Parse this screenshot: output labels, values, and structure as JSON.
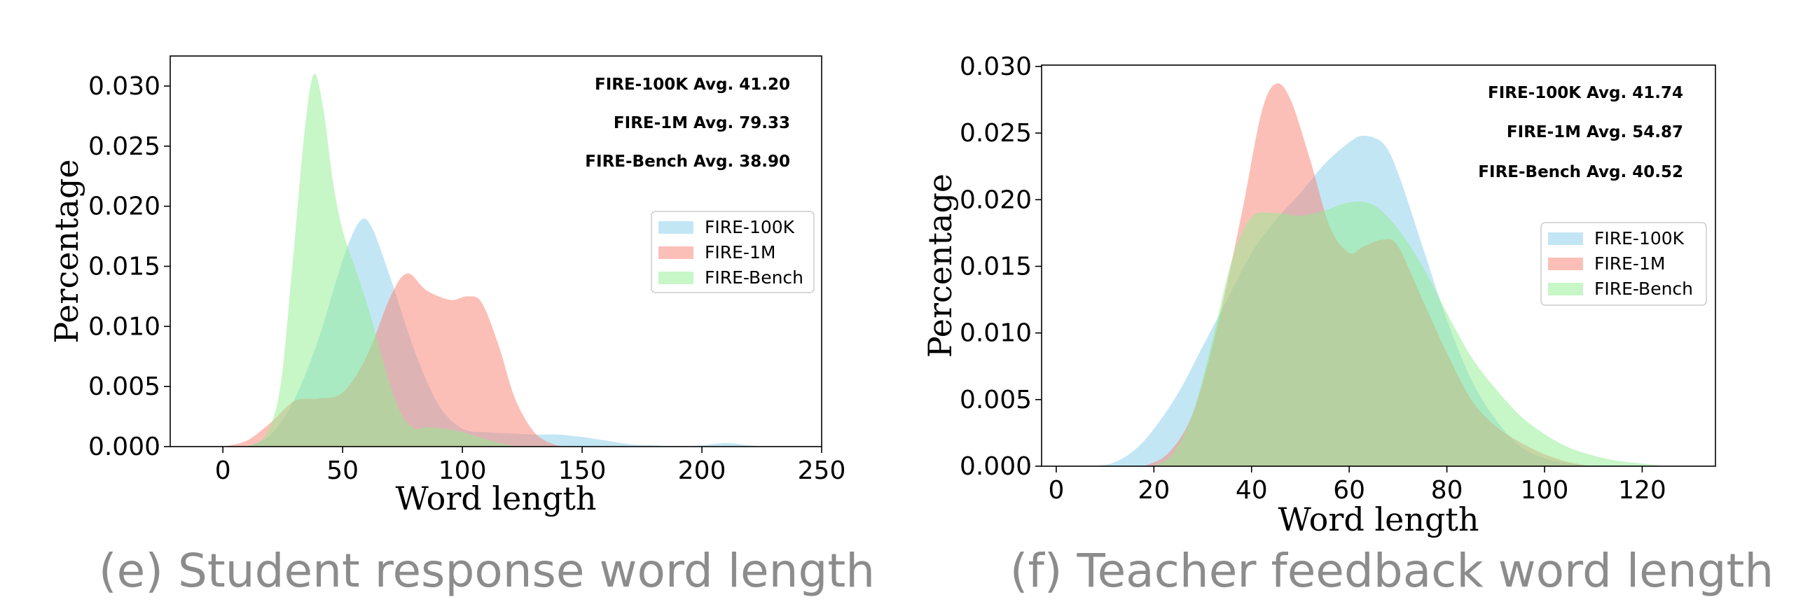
{
  "chart_data": [
    {
      "type": "area",
      "caption": "(e) Student response word length",
      "xlabel": "Word length",
      "ylabel": "Percentage",
      "xlim": [
        -22,
        250
      ],
      "ylim": [
        0,
        0.0325
      ],
      "xticks": [
        "0",
        "50",
        "100",
        "150",
        "200",
        "250"
      ],
      "xtick_values": [
        0,
        50,
        100,
        150,
        200,
        250
      ],
      "yticks": [
        "0.000",
        "0.005",
        "0.010",
        "0.015",
        "0.020",
        "0.025",
        "0.030"
      ],
      "ytick_values": [
        0,
        0.005,
        0.01,
        0.015,
        0.02,
        0.025,
        0.03
      ],
      "averages": [
        "FIRE-100K Avg. 41.20",
        "FIRE-1M Avg. 79.33",
        "FIRE-Bench Avg. 38.90"
      ],
      "legend": {
        "placement": "right",
        "entries": [
          "FIRE-100K",
          "FIRE-1M",
          "FIRE-Bench"
        ]
      },
      "series": [
        {
          "name": "FIRE-100K",
          "color": "#87ceeb",
          "points": [
            [
              10,
              0
            ],
            [
              20,
              0.001
            ],
            [
              30,
              0.004
            ],
            [
              40,
              0.009
            ],
            [
              50,
              0.0155
            ],
            [
              57,
              0.0187
            ],
            [
              62,
              0.0183
            ],
            [
              70,
              0.014
            ],
            [
              80,
              0.008
            ],
            [
              90,
              0.0035
            ],
            [
              100,
              0.0015
            ],
            [
              110,
              0.0012
            ],
            [
              120,
              0.0011
            ],
            [
              130,
              0.001
            ],
            [
              140,
              0.001
            ],
            [
              150,
              0.0008
            ],
            [
              160,
              0.0005
            ],
            [
              170,
              0.0002
            ],
            [
              180,
              0.0001
            ],
            [
              190,
              0
            ],
            [
              200,
              0.0001
            ],
            [
              210,
              0.0003
            ],
            [
              220,
              0.0001
            ],
            [
              225,
              0
            ]
          ]
        },
        {
          "name": "FIRE-1M",
          "color": "#fa8072",
          "points": [
            [
              0,
              0
            ],
            [
              10,
              0.0005
            ],
            [
              20,
              0.002
            ],
            [
              30,
              0.0038
            ],
            [
              40,
              0.004
            ],
            [
              50,
              0.0045
            ],
            [
              60,
              0.0075
            ],
            [
              70,
              0.0125
            ],
            [
              77,
              0.0144
            ],
            [
              85,
              0.013
            ],
            [
              95,
              0.0122
            ],
            [
              102,
              0.0125
            ],
            [
              108,
              0.012
            ],
            [
              115,
              0.0085
            ],
            [
              122,
              0.004
            ],
            [
              130,
              0.0012
            ],
            [
              138,
              0.0002
            ],
            [
              145,
              0
            ]
          ]
        },
        {
          "name": "FIRE-Bench",
          "color": "#90ee90",
          "points": [
            [
              10,
              0
            ],
            [
              18,
              0.001
            ],
            [
              24,
              0.005
            ],
            [
              29,
              0.015
            ],
            [
              34,
              0.026
            ],
            [
              38,
              0.031
            ],
            [
              42,
              0.028
            ],
            [
              46,
              0.022
            ],
            [
              50,
              0.018
            ],
            [
              55,
              0.015
            ],
            [
              60,
              0.012
            ],
            [
              65,
              0.0085
            ],
            [
              70,
              0.005
            ],
            [
              75,
              0.0025
            ],
            [
              80,
              0.0015
            ],
            [
              85,
              0.0016
            ],
            [
              92,
              0.0015
            ],
            [
              100,
              0.0012
            ],
            [
              110,
              0.0006
            ],
            [
              120,
              0.0001
            ],
            [
              125,
              0
            ]
          ]
        }
      ]
    },
    {
      "type": "area",
      "caption": "(f) Teacher feedback word length",
      "xlabel": "Word length",
      "ylabel": "Percentage",
      "xlim": [
        -3,
        135
      ],
      "ylim": [
        0,
        0.0301
      ],
      "xticks": [
        "0",
        "20",
        "40",
        "60",
        "80",
        "100",
        "120"
      ],
      "xtick_values": [
        0,
        20,
        40,
        60,
        80,
        100,
        120
      ],
      "yticks": [
        "0.000",
        "0.005",
        "0.010",
        "0.015",
        "0.020",
        "0.025",
        "0.030"
      ],
      "ytick_values": [
        0,
        0.005,
        0.01,
        0.015,
        0.02,
        0.025,
        0.03
      ],
      "averages": [
        "FIRE-100K Avg. 41.74",
        "FIRE-1M Avg. 54.87",
        "FIRE-Bench Avg. 40.52"
      ],
      "legend": {
        "placement": "right",
        "entries": [
          "FIRE-100K",
          "FIRE-1M",
          "FIRE-Bench"
        ]
      },
      "series": [
        {
          "name": "FIRE-100K",
          "color": "#87ceeb",
          "points": [
            [
              8,
              0
            ],
            [
              12,
              0.0003
            ],
            [
              16,
              0.0012
            ],
            [
              20,
              0.0028
            ],
            [
              25,
              0.0055
            ],
            [
              30,
              0.009
            ],
            [
              35,
              0.0125
            ],
            [
              40,
              0.016
            ],
            [
              45,
              0.0185
            ],
            [
              50,
              0.0205
            ],
            [
              55,
              0.0227
            ],
            [
              60,
              0.0243
            ],
            [
              63,
              0.0248
            ],
            [
              67,
              0.0242
            ],
            [
              70,
              0.022
            ],
            [
              75,
              0.0165
            ],
            [
              80,
              0.011
            ],
            [
              85,
              0.0065
            ],
            [
              90,
              0.0035
            ],
            [
              95,
              0.0015
            ],
            [
              100,
              0.0006
            ],
            [
              105,
              0.0002
            ],
            [
              110,
              0
            ]
          ]
        },
        {
          "name": "FIRE-1M",
          "color": "#fa8072",
          "points": [
            [
              18,
              0
            ],
            [
              23,
              0.001
            ],
            [
              28,
              0.004
            ],
            [
              33,
              0.0105
            ],
            [
              38,
              0.019
            ],
            [
              42,
              0.0265
            ],
            [
              45,
              0.0287
            ],
            [
              48,
              0.0275
            ],
            [
              52,
              0.023
            ],
            [
              56,
              0.018
            ],
            [
              60,
              0.016
            ],
            [
              63,
              0.0165
            ],
            [
              67,
              0.017
            ],
            [
              70,
              0.0165
            ],
            [
              75,
              0.0125
            ],
            [
              80,
              0.0085
            ],
            [
              85,
              0.005
            ],
            [
              90,
              0.003
            ],
            [
              95,
              0.0018
            ],
            [
              100,
              0.0009
            ],
            [
              105,
              0.0003
            ],
            [
              110,
              0
            ]
          ]
        },
        {
          "name": "FIRE-Bench",
          "color": "#90ee90",
          "points": [
            [
              20,
              0
            ],
            [
              24,
              0.001
            ],
            [
              28,
              0.004
            ],
            [
              32,
              0.0095
            ],
            [
              36,
              0.0155
            ],
            [
              40,
              0.0187
            ],
            [
              45,
              0.019
            ],
            [
              50,
              0.0188
            ],
            [
              55,
              0.0192
            ],
            [
              60,
              0.0198
            ],
            [
              65,
              0.0196
            ],
            [
              70,
              0.0178
            ],
            [
              75,
              0.015
            ],
            [
              80,
              0.0115
            ],
            [
              85,
              0.0082
            ],
            [
              90,
              0.0058
            ],
            [
              95,
              0.0038
            ],
            [
              100,
              0.0024
            ],
            [
              105,
              0.0014
            ],
            [
              110,
              0.0008
            ],
            [
              115,
              0.0004
            ],
            [
              120,
              0.0002
            ],
            [
              125,
              0
            ]
          ]
        }
      ]
    }
  ]
}
